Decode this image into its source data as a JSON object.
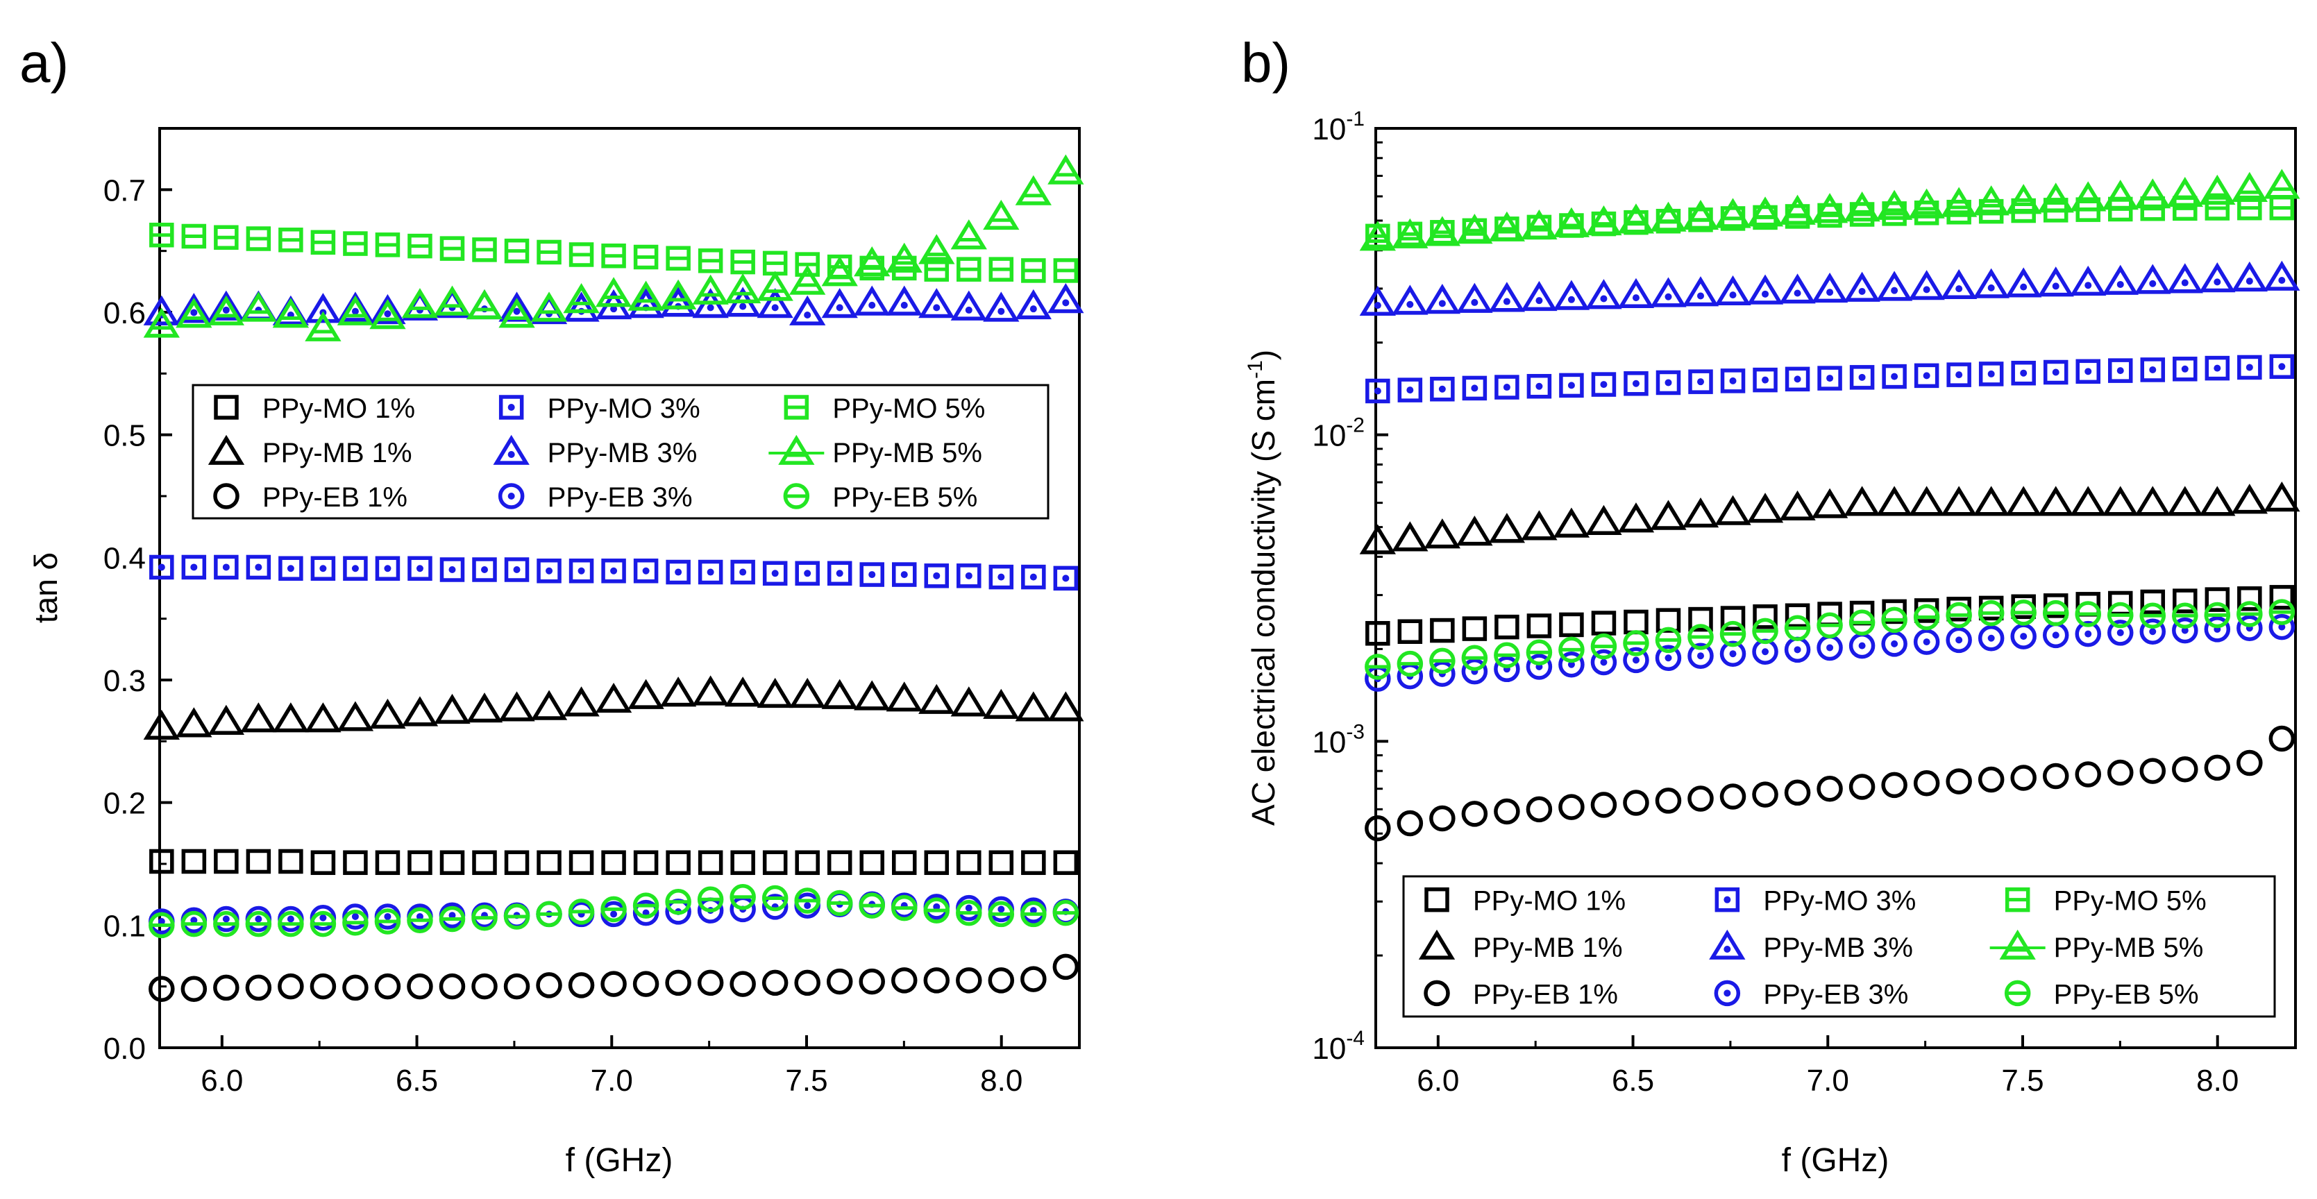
{
  "colors": {
    "black": "#000000",
    "blue": "#1a1ae6",
    "green": "#22e622"
  },
  "chart_data": [
    {
      "panel_label": "a)",
      "type": "scatter",
      "ylabel": "tan δ",
      "xlabel": "f (GHz)",
      "xlim": [
        5.84,
        8.2
      ],
      "ylim": [
        0.0,
        0.75
      ],
      "yscale": "linear",
      "xticks": [
        {
          "v": 6.0,
          "label": "6.0"
        },
        {
          "v": 6.5,
          "label": "6.5"
        },
        {
          "v": 7.0,
          "label": "7.0"
        },
        {
          "v": 7.5,
          "label": "7.5"
        },
        {
          "v": 8.0,
          "label": "8.0"
        }
      ],
      "yticks": [
        {
          "v": 0.0,
          "label": "0.0"
        },
        {
          "v": 0.1,
          "label": "0.1"
        },
        {
          "v": 0.2,
          "label": "0.2"
        },
        {
          "v": 0.3,
          "label": "0.3"
        },
        {
          "v": 0.4,
          "label": "0.4"
        },
        {
          "v": 0.5,
          "label": "0.5"
        },
        {
          "v": 0.6,
          "label": "0.6"
        },
        {
          "v": 0.7,
          "label": "0.7"
        }
      ],
      "legend_position": "upper-middle",
      "series": [
        {
          "name": "PPy-MO 1%",
          "marker": "square",
          "color": "black",
          "values": [
            0.152,
            0.152,
            0.152,
            0.152,
            0.152,
            0.151,
            0.151,
            0.151,
            0.151,
            0.151,
            0.151,
            0.151,
            0.151,
            0.151,
            0.151,
            0.151,
            0.151,
            0.151,
            0.151,
            0.151,
            0.151,
            0.151,
            0.151,
            0.151,
            0.151,
            0.151,
            0.151,
            0.151,
            0.151
          ]
        },
        {
          "name": "PPy-MO 3%",
          "marker": "square-dot",
          "color": "blue",
          "values": [
            0.392,
            0.392,
            0.392,
            0.392,
            0.391,
            0.391,
            0.391,
            0.391,
            0.391,
            0.39,
            0.39,
            0.39,
            0.389,
            0.389,
            0.389,
            0.389,
            0.388,
            0.388,
            0.388,
            0.387,
            0.387,
            0.387,
            0.386,
            0.386,
            0.385,
            0.385,
            0.384,
            0.384,
            0.383
          ]
        },
        {
          "name": "PPy-MO 5%",
          "marker": "square-bar",
          "color": "green",
          "values": [
            0.663,
            0.662,
            0.661,
            0.66,
            0.659,
            0.657,
            0.656,
            0.655,
            0.654,
            0.652,
            0.651,
            0.65,
            0.649,
            0.647,
            0.646,
            0.645,
            0.644,
            0.642,
            0.641,
            0.64,
            0.639,
            0.637,
            0.636,
            0.636,
            0.635,
            0.635,
            0.635,
            0.634,
            0.634
          ]
        },
        {
          "name": "PPy-MB 1%",
          "marker": "triangle",
          "color": "black",
          "values": [
            0.262,
            0.264,
            0.266,
            0.268,
            0.268,
            0.268,
            0.269,
            0.271,
            0.273,
            0.275,
            0.276,
            0.277,
            0.278,
            0.281,
            0.284,
            0.287,
            0.289,
            0.29,
            0.289,
            0.288,
            0.288,
            0.287,
            0.286,
            0.285,
            0.283,
            0.281,
            0.279,
            0.277,
            0.277
          ]
        },
        {
          "name": "PPy-MB 3%",
          "marker": "triangle-dot",
          "color": "blue",
          "values": [
            0.6,
            0.602,
            0.604,
            0.604,
            0.6,
            0.602,
            0.603,
            0.601,
            0.604,
            0.606,
            0.605,
            0.603,
            0.601,
            0.603,
            0.605,
            0.606,
            0.607,
            0.606,
            0.607,
            0.606,
            0.6,
            0.606,
            0.608,
            0.608,
            0.606,
            0.604,
            0.603,
            0.605,
            0.61
          ]
        },
        {
          "name": "PPy-MB 5%",
          "marker": "triangle-bar",
          "color": "green",
          "values": [
            0.59,
            0.598,
            0.6,
            0.603,
            0.598,
            0.587,
            0.6,
            0.597,
            0.606,
            0.608,
            0.605,
            0.598,
            0.603,
            0.61,
            0.615,
            0.612,
            0.613,
            0.617,
            0.618,
            0.62,
            0.625,
            0.632,
            0.64,
            0.643,
            0.65,
            0.662,
            0.678,
            0.698,
            0.715
          ]
        },
        {
          "name": "PPy-EB 1%",
          "marker": "circle",
          "color": "black",
          "values": [
            0.048,
            0.048,
            0.049,
            0.049,
            0.05,
            0.05,
            0.049,
            0.05,
            0.05,
            0.05,
            0.05,
            0.05,
            0.051,
            0.051,
            0.052,
            0.052,
            0.053,
            0.053,
            0.052,
            0.053,
            0.053,
            0.054,
            0.054,
            0.055,
            0.055,
            0.055,
            0.055,
            0.056,
            0.066
          ]
        },
        {
          "name": "PPy-EB 3%",
          "marker": "circle-dot",
          "color": "blue",
          "values": [
            0.103,
            0.104,
            0.105,
            0.105,
            0.105,
            0.106,
            0.107,
            0.107,
            0.107,
            0.108,
            0.108,
            0.108,
            0.109,
            0.109,
            0.109,
            0.11,
            0.111,
            0.112,
            0.113,
            0.115,
            0.116,
            0.117,
            0.117,
            0.116,
            0.115,
            0.114,
            0.113,
            0.112,
            0.111
          ]
        },
        {
          "name": "PPy-EB 5%",
          "marker": "circle-bar",
          "color": "green",
          "values": [
            0.1,
            0.101,
            0.101,
            0.101,
            0.101,
            0.101,
            0.102,
            0.103,
            0.104,
            0.105,
            0.106,
            0.107,
            0.109,
            0.111,
            0.113,
            0.116,
            0.119,
            0.121,
            0.123,
            0.122,
            0.12,
            0.118,
            0.116,
            0.114,
            0.112,
            0.11,
            0.109,
            0.109,
            0.11
          ]
        }
      ]
    },
    {
      "panel_label": "b)",
      "type": "scatter",
      "ylabel": "AC electrical conductivity (S cm-1)",
      "ylabel_main": "AC electrical conductivity (S cm",
      "ylabel_sup": "-1",
      "ylabel_end": ")",
      "xlabel": "f (GHz)",
      "xlim": [
        5.84,
        8.2
      ],
      "ylim": [
        0.0001,
        0.1
      ],
      "yscale": "log",
      "xticks": [
        {
          "v": 6.0,
          "label": "6.0"
        },
        {
          "v": 6.5,
          "label": "6.5"
        },
        {
          "v": 7.0,
          "label": "7.0"
        },
        {
          "v": 7.5,
          "label": "7.5"
        },
        {
          "v": 8.0,
          "label": "8.0"
        }
      ],
      "yticks": [
        {
          "v": 0.0001,
          "base": "10",
          "exp": "-4"
        },
        {
          "v": 0.001,
          "base": "10",
          "exp": "-3"
        },
        {
          "v": 0.01,
          "base": "10",
          "exp": "-2"
        },
        {
          "v": 0.1,
          "base": "10",
          "exp": "-1"
        }
      ],
      "legend_position": "lower-middle",
      "series": [
        {
          "name": "PPy-MO 1%",
          "marker": "square",
          "color": "black",
          "values": [
            0.00225,
            0.00228,
            0.0023,
            0.00233,
            0.00236,
            0.00238,
            0.0024,
            0.00243,
            0.00245,
            0.00248,
            0.0025,
            0.00252,
            0.00255,
            0.00257,
            0.0026,
            0.00262,
            0.00265,
            0.00267,
            0.0027,
            0.00272,
            0.00275,
            0.00277,
            0.0028,
            0.00282,
            0.00285,
            0.00287,
            0.0029,
            0.00292,
            0.00295
          ]
        },
        {
          "name": "PPy-MO 3%",
          "marker": "square-dot",
          "color": "blue",
          "values": [
            0.0139,
            0.014,
            0.0141,
            0.0142,
            0.0143,
            0.0144,
            0.0145,
            0.0146,
            0.0147,
            0.0148,
            0.0149,
            0.015,
            0.0151,
            0.0152,
            0.0153,
            0.0154,
            0.0155,
            0.0156,
            0.0157,
            0.0158,
            0.0159,
            0.016,
            0.0161,
            0.0162,
            0.0163,
            0.0164,
            0.0165,
            0.0166,
            0.0167
          ]
        },
        {
          "name": "PPy-MO 5%",
          "marker": "square-bar",
          "color": "green",
          "values": [
            0.0445,
            0.0452,
            0.0458,
            0.0464,
            0.047,
            0.0476,
            0.0482,
            0.0488,
            0.0493,
            0.0498,
            0.0503,
            0.0508,
            0.0512,
            0.0516,
            0.052,
            0.0524,
            0.0527,
            0.053,
            0.0533,
            0.0536,
            0.0539,
            0.0541,
            0.0543,
            0.0545,
            0.0547,
            0.0548,
            0.0549,
            0.055,
            0.055
          ]
        },
        {
          "name": "PPy-MB 1%",
          "marker": "triangle",
          "color": "black",
          "values": [
            0.0045,
            0.0046,
            0.0047,
            0.0048,
            0.0049,
            0.005,
            0.0051,
            0.0052,
            0.0053,
            0.0054,
            0.0055,
            0.0056,
            0.0057,
            0.0058,
            0.0059,
            0.006,
            0.006,
            0.006,
            0.006,
            0.006,
            0.006,
            0.006,
            0.006,
            0.006,
            0.006,
            0.006,
            0.006,
            0.0061,
            0.0062
          ]
        },
        {
          "name": "PPy-MB 3%",
          "marker": "triangle-dot",
          "color": "blue",
          "values": [
            0.027,
            0.0272,
            0.0274,
            0.0276,
            0.0278,
            0.028,
            0.0282,
            0.0284,
            0.0286,
            0.0288,
            0.029,
            0.0292,
            0.0294,
            0.0296,
            0.0298,
            0.03,
            0.0302,
            0.0304,
            0.0306,
            0.0308,
            0.031,
            0.0312,
            0.0314,
            0.0316,
            0.0318,
            0.032,
            0.0322,
            0.0324,
            0.0326
          ]
        },
        {
          "name": "PPy-MB 5%",
          "marker": "triangle-bar",
          "color": "green",
          "values": [
            0.044,
            0.0448,
            0.0456,
            0.0464,
            0.0472,
            0.0479,
            0.0487,
            0.0494,
            0.0501,
            0.0508,
            0.0515,
            0.0522,
            0.0528,
            0.0535,
            0.0542,
            0.0548,
            0.0555,
            0.0561,
            0.0567,
            0.0574,
            0.058,
            0.0586,
            0.0592,
            0.0599,
            0.0605,
            0.0612,
            0.0622,
            0.0635,
            0.065
          ]
        },
        {
          "name": "PPy-EB 1%",
          "marker": "circle",
          "color": "black",
          "values": [
            0.00052,
            0.00054,
            0.00056,
            0.00058,
            0.00059,
            0.0006,
            0.00061,
            0.00062,
            0.00063,
            0.00064,
            0.00065,
            0.00066,
            0.00067,
            0.00068,
            0.0007,
            0.00071,
            0.00072,
            0.00073,
            0.00074,
            0.00075,
            0.00076,
            0.00077,
            0.00078,
            0.00079,
            0.0008,
            0.00081,
            0.00082,
            0.00085,
            0.00102
          ]
        },
        {
          "name": "PPy-EB 3%",
          "marker": "circle-dot",
          "color": "blue",
          "values": [
            0.0016,
            0.00163,
            0.00166,
            0.00169,
            0.00172,
            0.00175,
            0.00178,
            0.00181,
            0.00184,
            0.00187,
            0.0019,
            0.00193,
            0.00196,
            0.00199,
            0.00202,
            0.00205,
            0.00208,
            0.00211,
            0.00214,
            0.00217,
            0.0022,
            0.00222,
            0.00224,
            0.00226,
            0.00228,
            0.0023,
            0.00232,
            0.00234,
            0.00236
          ]
        },
        {
          "name": "PPy-EB 5%",
          "marker": "circle-bar",
          "color": "green",
          "values": [
            0.00175,
            0.00179,
            0.00183,
            0.00187,
            0.00191,
            0.00195,
            0.00199,
            0.00204,
            0.00209,
            0.00214,
            0.00219,
            0.00224,
            0.00229,
            0.00234,
            0.00239,
            0.00244,
            0.00249,
            0.00254,
            0.00258,
            0.00262,
            0.00263,
            0.00262,
            0.0026,
            0.00258,
            0.00257,
            0.00257,
            0.00258,
            0.0026,
            0.00264
          ]
        }
      ]
    }
  ]
}
